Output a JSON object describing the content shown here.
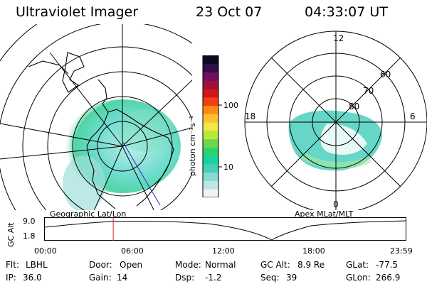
{
  "header": {
    "instrument": "Ultraviolet Imager",
    "date": "23 Oct 07",
    "time": "04:33:07 UT"
  },
  "left_map": {
    "projection_label": "Geographic Lat/Lon"
  },
  "right_map": {
    "projection_label": "Apex MLat/MLT",
    "mlt_labels": {
      "top": "12",
      "left": "18",
      "right": "6",
      "bottom": "0"
    },
    "lat_labels": [
      "60",
      "70",
      "80"
    ]
  },
  "colorbar": {
    "unit_label": "photon cm⁻²s⁻¹",
    "ticks": [
      "100",
      "10"
    ],
    "colors": [
      "#f3f3f3",
      "#bfe6e6",
      "#8ad8d2",
      "#46d0b8",
      "#1fd09a",
      "#2fd072",
      "#6cd84a",
      "#b8e83a",
      "#f0e848",
      "#ffc030",
      "#ff8a18",
      "#f04010",
      "#d01818",
      "#a0103a",
      "#701060",
      "#301048",
      "#0a0a20"
    ]
  },
  "altitude_plot": {
    "ylabel": "GC Alt",
    "yticks": [
      "9.0",
      "1.8"
    ],
    "xticks": [
      "00:00",
      "06:00",
      "12:00",
      "18:00",
      "23:59"
    ],
    "marker_time_hours": 4.55,
    "marker_color": "#d02020"
  },
  "footer": {
    "row1": [
      {
        "key": "Flt:",
        "value": "LBHL"
      },
      {
        "key": "Door:",
        "value": "Open"
      },
      {
        "key": "Mode:",
        "value": "Normal"
      },
      {
        "key": "GC Alt:",
        "value": "8.9 Re"
      },
      {
        "key": "GLat:",
        "value": "-77.5"
      }
    ],
    "row2": [
      {
        "key": "IP:",
        "value": "36.0"
      },
      {
        "key": "Gain:",
        "value": "14"
      },
      {
        "key": "Dsp:",
        "value": "-1.2"
      },
      {
        "key": "Seq:",
        "value": "39"
      },
      {
        "key": "GLon:",
        "value": "266.9"
      }
    ]
  }
}
